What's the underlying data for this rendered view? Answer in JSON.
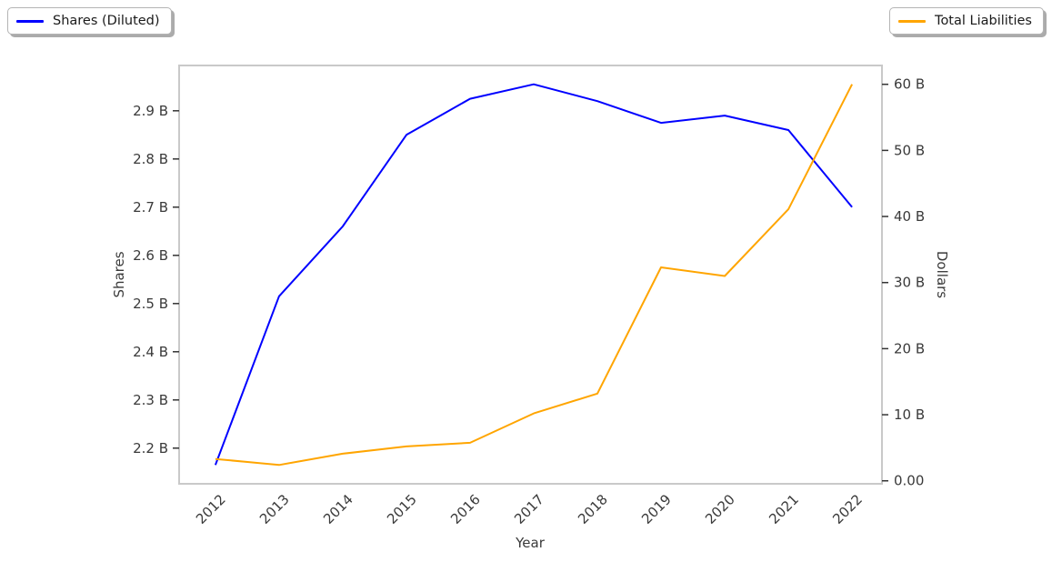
{
  "chart_data": {
    "type": "line",
    "title": "",
    "xlabel": "Year",
    "x": [
      2012,
      2013,
      2014,
      2015,
      2016,
      2017,
      2018,
      2019,
      2020,
      2021,
      2022
    ],
    "xtick_labels": [
      "2012",
      "2013",
      "2014",
      "2015",
      "2016",
      "2017",
      "2018",
      "2019",
      "2020",
      "2021",
      "2022"
    ],
    "xlim": [
      2011.43,
      2022.47
    ],
    "grid": false,
    "legend_position": "top-left and top-right, outside axes",
    "series": [
      {
        "name": "Shares (Diluted)",
        "axis": "left",
        "color": "#0000ff",
        "values": [
          2.165,
          2.515,
          2.66,
          2.85,
          2.925,
          2.955,
          2.92,
          2.875,
          2.89,
          2.86,
          2.7
        ],
        "unit": "billions of shares"
      },
      {
        "name": "Total Liabilities",
        "axis": "right",
        "color": "#ffa500",
        "values": [
          3.3,
          2.4,
          4.1,
          5.2,
          5.75,
          10.2,
          13.2,
          32.3,
          31.0,
          41.1,
          60.0
        ],
        "unit": "billions of dollars"
      }
    ],
    "left_axis": {
      "label": "Shares",
      "ticks": [
        2.2,
        2.3,
        2.4,
        2.5,
        2.6,
        2.7,
        2.8,
        2.9
      ],
      "tick_labels": [
        "2.2 B",
        "2.3 B",
        "2.4 B",
        "2.5 B",
        "2.6 B",
        "2.7 B",
        "2.8 B",
        "2.9 B"
      ],
      "ylim": [
        2.126,
        2.994
      ]
    },
    "right_axis": {
      "label": "Dollars",
      "ticks": [
        0,
        10,
        20,
        30,
        40,
        50,
        60
      ],
      "tick_labels": [
        "0.00",
        "10 B",
        "20 B",
        "30 B",
        "40 B",
        "50 B",
        "60 B"
      ],
      "ylim": [
        -0.45,
        62.85
      ]
    },
    "colors": {
      "frame": "#c9c9c9",
      "tick_mark": "#333333",
      "tick_label": "#3a3a3a",
      "legend_border": "#b4b4b4",
      "legend_shadow": "#ababab",
      "background": "#ffffff"
    }
  }
}
